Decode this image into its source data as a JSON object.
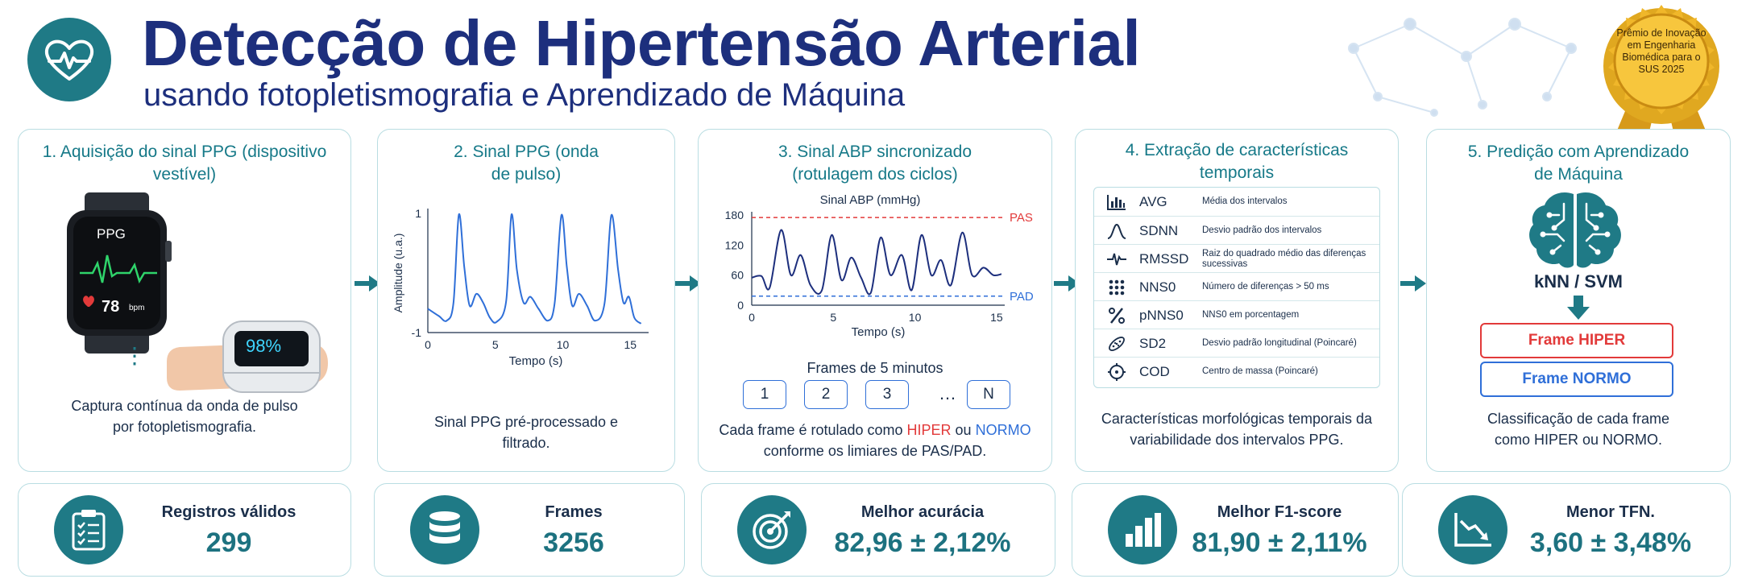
{
  "header": {
    "title": "Detecção de Hipertensão Arterial",
    "subtitle": "usando fotopletismografia e Aprendizado de Máquina",
    "badge_text": "Prêmio de Inovação em Engenharia Biomédica para o SUS 2025"
  },
  "panels": [
    {
      "title": "1. Aquisição do sinal PPG (dispositivo vestível)",
      "watch_label": "PPG",
      "bpm_value": "78",
      "bpm_unit": "bpm",
      "spo2": "98%",
      "dots": "⋮",
      "caption": "Captura contínua da onda de pulso por fotopletismografia."
    },
    {
      "title": "2. Sinal PPG (onda de pulso)",
      "caption": "Sinal PPG pré-processado e filtrado."
    },
    {
      "title": "3. Sinal ABP sincronizado (rotulagem dos ciclos)",
      "frames_label": "Frames de 5 minutos",
      "frames": [
        "1",
        "2",
        "3",
        "…",
        "N"
      ],
      "caption_prefix": "Cada frame é rotulado como ",
      "caption_hiper": "HIPER",
      "caption_or": " ou ",
      "caption_normo": "NORMO",
      "caption_suffix": "conforme os limiares de PAS/PAD."
    },
    {
      "title": "4. Extração de características temporais",
      "caption": "Características morfológicas temporais da variabilidade dos intervalos PPG.",
      "features": [
        {
          "icon": "bar-chart-icon",
          "name": "AVG",
          "desc": "Média dos intervalos"
        },
        {
          "icon": "bell-curve-icon",
          "name": "SDNN",
          "desc": "Desvio padrão dos intervalos"
        },
        {
          "icon": "pulse-wave-icon",
          "name": "RMSSD",
          "desc": "Raiz do quadrado médio das diferenças sucessivas"
        },
        {
          "icon": "dot-grid-icon",
          "name": "NNS0",
          "desc": "Número de diferenças > 50 ms"
        },
        {
          "icon": "percent-icon",
          "name": "pNNS0",
          "desc": "NNS0 em porcentagem"
        },
        {
          "icon": "ellipse-scatter-icon",
          "name": "SD2",
          "desc": "Desvio padrão longitudinal (Poincaré)"
        },
        {
          "icon": "crosshair-icon",
          "name": "COD",
          "desc": "Centro de massa (Poincaré)"
        }
      ]
    },
    {
      "title": "5. Predição com Aprendizado de Máquina",
      "model": "kNN / SVM",
      "out_hiper": "Frame HIPER",
      "out_normo": "Frame NORMO",
      "caption": "Classificação de cada frame como HIPER ou NORMO."
    }
  ],
  "stats": [
    {
      "icon": "clipboard-icon",
      "label": "Registros válidos",
      "value": "299"
    },
    {
      "icon": "database-icon",
      "label": "Frames",
      "value": "3256"
    },
    {
      "icon": "target-icon",
      "label": "Melhor acurácia",
      "value": "82,96 ± 2,12%"
    },
    {
      "icon": "bar-chart-icon",
      "label": "Melhor F1-score",
      "value": "81,90 ± 2,11%"
    },
    {
      "icon": "trend-down-icon",
      "label": "Menor TFN.",
      "value": "3,60 ± 3,48%"
    }
  ],
  "chart_data": [
    {
      "type": "line",
      "title": "",
      "xlabel": "Tempo (s)",
      "ylabel": "Amplitude (u.a.)",
      "xlim": [
        0,
        16
      ],
      "ylim": [
        -1,
        1
      ],
      "xticks": [
        0,
        5,
        10,
        15
      ],
      "yticks": [
        -1,
        1
      ],
      "colors": {
        "line": "#2f6fd8"
      },
      "series": [
        {
          "x": [
            0,
            0.8,
            1.4,
            1.9,
            2.3,
            2.7,
            3.1,
            3.6,
            4.1,
            4.6,
            5.1,
            5.8,
            6.2,
            6.6,
            7.1,
            7.6,
            8.2,
            8.9,
            9.4,
            9.9,
            10.3,
            10.7,
            11.2,
            11.8,
            12.4,
            13.1,
            13.6,
            14.1,
            14.5,
            14.9,
            15.3,
            15.8
          ],
          "y": [
            -0.6,
            -0.72,
            -0.8,
            -0.5,
            0.98,
            0.1,
            -0.55,
            -0.35,
            -0.5,
            -0.75,
            -0.82,
            -0.48,
            0.98,
            0.05,
            -0.5,
            -0.4,
            -0.6,
            -0.8,
            -0.5,
            0.97,
            0.1,
            -0.55,
            -0.35,
            -0.55,
            -0.8,
            -0.5,
            0.97,
            0.05,
            -0.5,
            -0.4,
            -0.75,
            -0.85
          ]
        }
      ]
    },
    {
      "type": "line",
      "title": "Sinal ABP (mmHg)",
      "xlabel": "Tempo (s)",
      "ylabel": "",
      "xlim": [
        0,
        15.5
      ],
      "ylim": [
        0,
        180
      ],
      "xticks": [
        0,
        5,
        10,
        15
      ],
      "yticks": [
        0,
        60,
        120,
        180
      ],
      "thresholds": [
        {
          "name": "PAS",
          "value": 175,
          "color": "#e23a3a"
        },
        {
          "name": "PAD",
          "value": 18,
          "color": "#2f6fd8"
        }
      ],
      "colors": {
        "line": "#1d2f7d"
      },
      "series": [
        {
          "x": [
            0,
            0.6,
            1.1,
            1.8,
            2.4,
            3.0,
            3.6,
            4.3,
            4.9,
            5.5,
            6.1,
            6.7,
            7.3,
            7.9,
            8.5,
            9.2,
            9.8,
            10.4,
            11.0,
            11.6,
            12.2,
            12.9,
            13.5,
            14.2,
            14.8,
            15.3
          ],
          "y": [
            55,
            58,
            35,
            150,
            60,
            100,
            40,
            30,
            140,
            50,
            95,
            55,
            25,
            135,
            60,
            100,
            30,
            140,
            60,
            90,
            40,
            145,
            60,
            75,
            60,
            62
          ]
        }
      ]
    }
  ]
}
